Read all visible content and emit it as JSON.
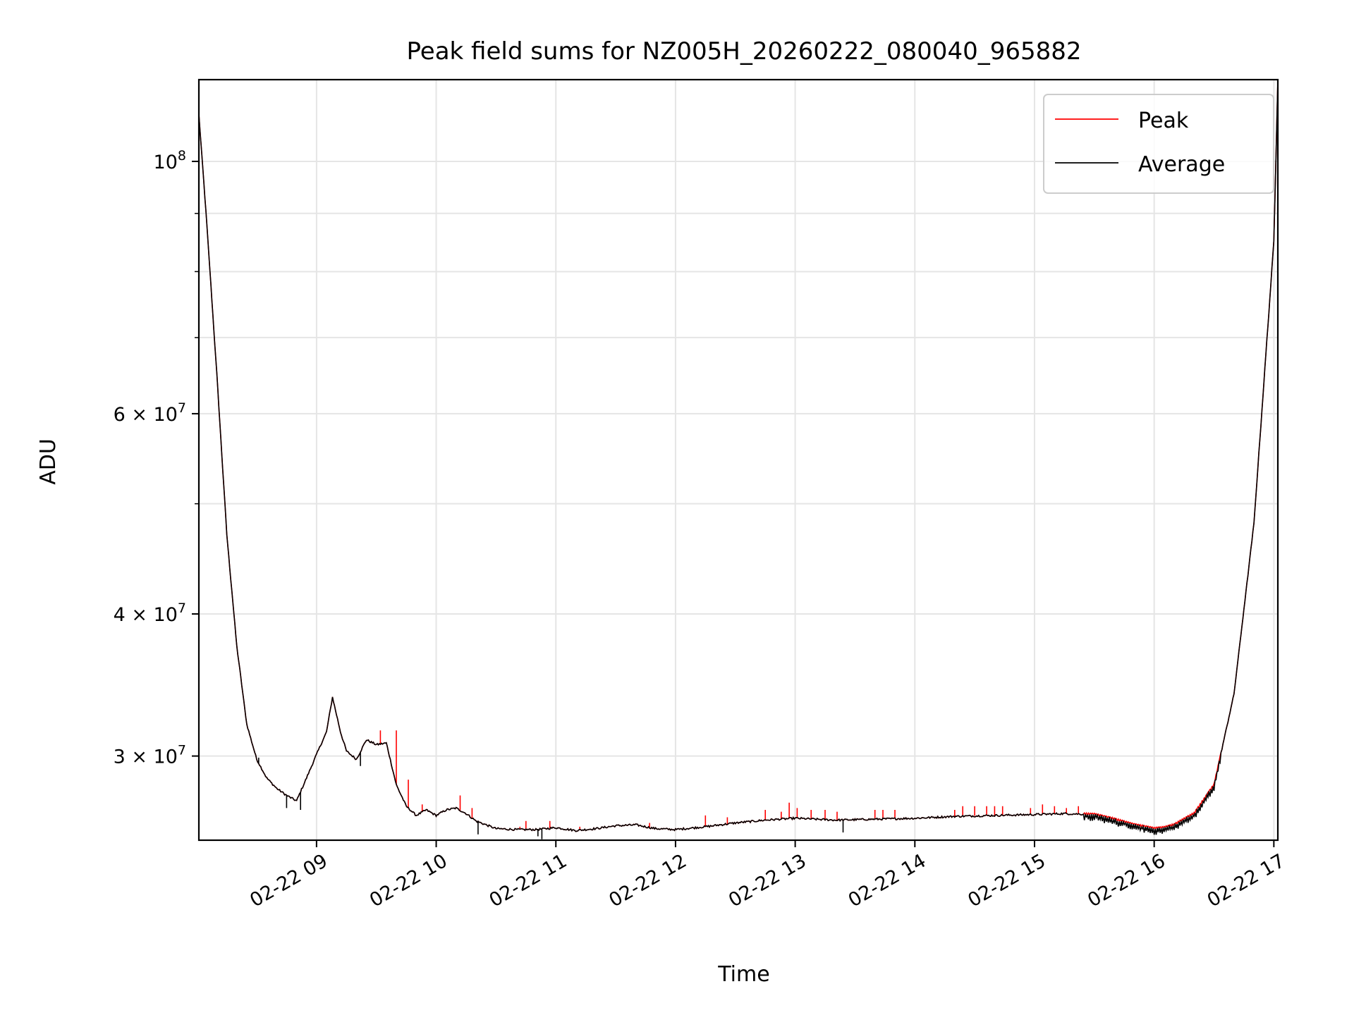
{
  "chart_data": {
    "type": "line",
    "title": "Peak field sums for NZ005H_20260222_080040_965882",
    "xlabel": "Time",
    "ylabel": "ADU",
    "yscale": "log",
    "grid": true,
    "legend_position": "top-right",
    "xlim": [
      "2026-02-22 08:01",
      "2026-02-22 17:02"
    ],
    "ylim": [
      25300000,
      118000000
    ],
    "x_ticks": [
      "02-22 09",
      "02-22 10",
      "02-22 11",
      "02-22 12",
      "02-22 13",
      "02-22 14",
      "02-22 15",
      "02-22 16",
      "02-22 17"
    ],
    "x_tick_values": [
      "2026-02-22 09:00",
      "2026-02-22 10:00",
      "2026-02-22 11:00",
      "2026-02-22 12:00",
      "2026-02-22 13:00",
      "2026-02-22 14:00",
      "2026-02-22 15:00",
      "2026-02-22 16:00",
      "2026-02-22 17:00"
    ],
    "y_ticks": [
      {
        "value": 100000000,
        "mantissa": "",
        "base": "10",
        "exp": "8"
      },
      {
        "value": 60000000,
        "mantissa": "6",
        "base": "10",
        "exp": "7"
      },
      {
        "value": 40000000,
        "mantissa": "4",
        "base": "10",
        "exp": "7"
      },
      {
        "value": 30000000,
        "mantissa": "3",
        "base": "10",
        "exp": "7"
      }
    ],
    "y_minor_ticks": [
      90000000,
      80000000,
      70000000,
      50000000
    ],
    "series": [
      {
        "name": "Peak",
        "color": "#ff0000"
      },
      {
        "name": "Average",
        "color": "#000000"
      }
    ],
    "x": [
      "08:01",
      "08:05",
      "08:10",
      "08:15",
      "08:20",
      "08:25",
      "08:30",
      "08:35",
      "08:40",
      "08:45",
      "08:50",
      "08:55",
      "09:00",
      "09:05",
      "09:08",
      "09:12",
      "09:15",
      "09:20",
      "09:25",
      "09:30",
      "09:35",
      "09:40",
      "09:45",
      "09:50",
      "09:55",
      "10:00",
      "10:05",
      "10:10",
      "10:15",
      "10:20",
      "10:30",
      "10:40",
      "10:50",
      "11:00",
      "11:10",
      "11:20",
      "11:30",
      "11:40",
      "11:50",
      "12:00",
      "12:15",
      "12:30",
      "12:45",
      "13:00",
      "13:20",
      "13:40",
      "14:00",
      "14:20",
      "14:40",
      "15:00",
      "15:15",
      "15:30",
      "15:40",
      "15:50",
      "16:00",
      "16:05",
      "16:10",
      "16:20",
      "16:30",
      "16:40",
      "16:50",
      "17:00",
      "17:02"
    ],
    "average": [
      110000000,
      88000000,
      65000000,
      47000000,
      37500000,
      32000000,
      29800000,
      28700000,
      28100000,
      27700000,
      27400000,
      28700000,
      30100000,
      31500000,
      33800000,
      31500000,
      30300000,
      29800000,
      31000000,
      30700000,
      30800000,
      28300000,
      27100000,
      26600000,
      26900000,
      26600000,
      26900000,
      27000000,
      26700000,
      26300000,
      25900000,
      25850000,
      25850000,
      25950000,
      25800000,
      25900000,
      26050000,
      26100000,
      25900000,
      25850000,
      26000000,
      26200000,
      26350000,
      26450000,
      26350000,
      26400000,
      26450000,
      26550000,
      26600000,
      26650000,
      26700000,
      26650000,
      26400000,
      26100000,
      25900000,
      25950000,
      26100000,
      26700000,
      28300000,
      34000000,
      48000000,
      85000000,
      118000000
    ],
    "peak_spikes": [
      {
        "x": "09:32",
        "y": 31600000
      },
      {
        "x": "09:40",
        "y": 31600000
      },
      {
        "x": "09:46",
        "y": 28600000
      },
      {
        "x": "09:53",
        "y": 27200000
      },
      {
        "x": "10:12",
        "y": 27700000
      },
      {
        "x": "10:18",
        "y": 27000000
      },
      {
        "x": "10:42",
        "y": 26000000
      },
      {
        "x": "10:45",
        "y": 26300000
      },
      {
        "x": "10:57",
        "y": 26300000
      },
      {
        "x": "11:12",
        "y": 26000000
      },
      {
        "x": "11:36",
        "y": 26050000
      },
      {
        "x": "11:39",
        "y": 26150000
      },
      {
        "x": "11:47",
        "y": 26200000
      },
      {
        "x": "12:15",
        "y": 26600000
      },
      {
        "x": "12:26",
        "y": 26500000
      },
      {
        "x": "12:45",
        "y": 26900000
      },
      {
        "x": "12:53",
        "y": 26800000
      },
      {
        "x": "12:57",
        "y": 27300000
      },
      {
        "x": "13:01",
        "y": 27000000
      },
      {
        "x": "13:08",
        "y": 26900000
      },
      {
        "x": "13:15",
        "y": 26900000
      },
      {
        "x": "13:21",
        "y": 26800000
      },
      {
        "x": "13:40",
        "y": 26900000
      },
      {
        "x": "13:44",
        "y": 26900000
      },
      {
        "x": "13:50",
        "y": 26900000
      },
      {
        "x": "14:20",
        "y": 26900000
      },
      {
        "x": "14:24",
        "y": 27100000
      },
      {
        "x": "14:30",
        "y": 27100000
      },
      {
        "x": "14:36",
        "y": 27100000
      },
      {
        "x": "14:40",
        "y": 27100000
      },
      {
        "x": "14:44",
        "y": 27100000
      },
      {
        "x": "14:58",
        "y": 27000000
      },
      {
        "x": "15:04",
        "y": 27200000
      },
      {
        "x": "15:10",
        "y": 27100000
      },
      {
        "x": "15:16",
        "y": 27000000
      },
      {
        "x": "15:22",
        "y": 27100000
      }
    ],
    "average_dips": [
      {
        "x": "08:31",
        "y": 29900000
      },
      {
        "x": "08:45",
        "y": 27000000
      },
      {
        "x": "08:52",
        "y": 26900000
      },
      {
        "x": "09:22",
        "y": 29400000
      },
      {
        "x": "10:21",
        "y": 25600000
      },
      {
        "x": "10:51",
        "y": 25500000
      },
      {
        "x": "10:53",
        "y": 25350000
      },
      {
        "x": "13:24",
        "y": 25700000
      }
    ],
    "noisy_band": {
      "x_start": "15:25",
      "x_end": "16:33",
      "amplitude_fraction": 0.013
    }
  }
}
